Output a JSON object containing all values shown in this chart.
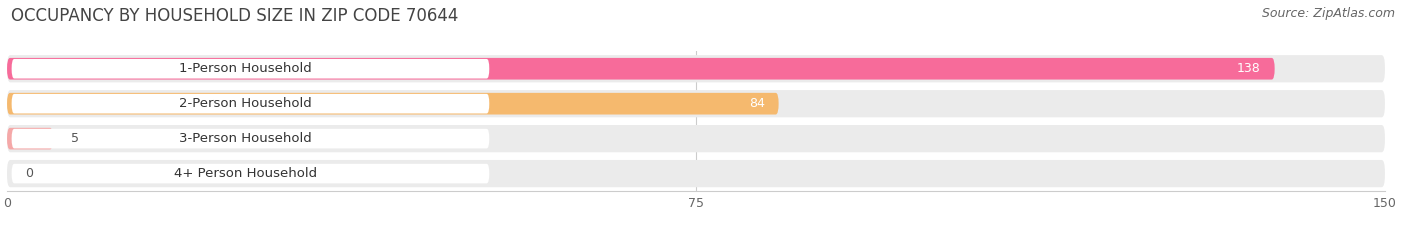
{
  "title": "OCCUPANCY BY HOUSEHOLD SIZE IN ZIP CODE 70644",
  "source": "Source: ZipAtlas.com",
  "categories": [
    "1-Person Household",
    "2-Person Household",
    "3-Person Household",
    "4+ Person Household"
  ],
  "values": [
    138,
    84,
    5,
    0
  ],
  "bar_colors": [
    "#F76B9A",
    "#F5B96E",
    "#F5A8A8",
    "#A8C4E0"
  ],
  "row_bg_color": "#EBEBEB",
  "label_bg_color": "#FFFFFF",
  "value_inside_color": "#FFFFFF",
  "value_outside_color": "#555555",
  "xlim": [
    0,
    150
  ],
  "xticks": [
    0,
    75,
    150
  ],
  "bar_height": 0.62,
  "background_color": "#FFFFFF",
  "plot_bg_color": "#FFFFFF",
  "title_fontsize": 12,
  "source_fontsize": 9,
  "label_fontsize": 9.5,
  "value_fontsize": 9,
  "tick_fontsize": 9
}
